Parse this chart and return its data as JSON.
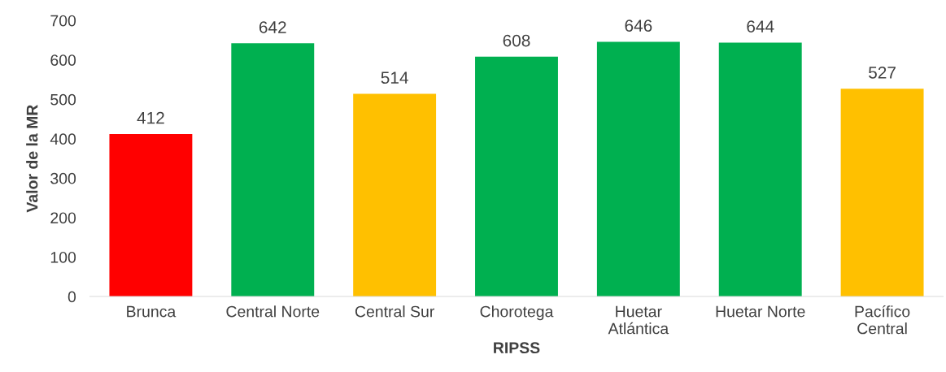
{
  "chart_data": {
    "type": "bar",
    "xlabel": "RIPSS",
    "ylabel": "Valor de la MR",
    "categories": [
      "Brunca",
      "Central Norte",
      "Central Sur",
      "Chorotega",
      "Huetar\nAtlántica",
      "Huetar Norte",
      "Pacífico\nCentral"
    ],
    "values": [
      412,
      642,
      514,
      608,
      646,
      644,
      527
    ],
    "colors": [
      "#ff0000",
      "#00b050",
      "#ffc000",
      "#00b050",
      "#00b050",
      "#00b050",
      "#ffc000"
    ],
    "ylim": [
      0,
      700
    ],
    "yticks": [
      0,
      100,
      200,
      300,
      400,
      500,
      600,
      700
    ],
    "data_labels": true,
    "grid": false
  }
}
